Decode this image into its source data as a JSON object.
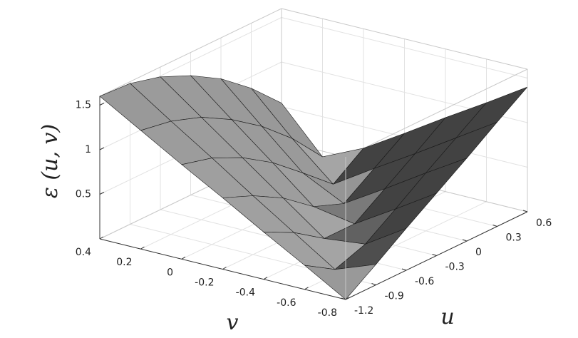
{
  "chart_data": {
    "type": "surface",
    "xlabel": "v",
    "ylabel": "u",
    "zlabel": "ε (u, v)",
    "u": [
      -1.2,
      -0.9,
      -0.6,
      -0.3,
      0,
      0.3,
      0.6
    ],
    "v": [
      -0.8,
      -0.6,
      -0.4,
      -0.2,
      0,
      0.2,
      0.4
    ],
    "z": [
      [
        0,
        0.23,
        0.47,
        0.7,
        0.93,
        1.17,
        1.4
      ],
      [
        0.27,
        0.06,
        0.18,
        0.41,
        0.65,
        0.88,
        1.11
      ],
      [
        0.53,
        0.36,
        0.13,
        0.13,
        0.36,
        0.59,
        0.83
      ],
      [
        0.8,
        0.66,
        0.47,
        0.21,
        0.08,
        0.31,
        0.54
      ],
      [
        1.06,
        0.97,
        0.81,
        0.59,
        0.31,
        0.02,
        0.26
      ],
      [
        1.33,
        1.27,
        1.15,
        0.96,
        0.72,
        0.42,
        0.05
      ],
      [
        1.6,
        1.58,
        1.49,
        1.34,
        1.14,
        0.87,
        0.54
      ]
    ],
    "ulim": [
      -1.2,
      0.6
    ],
    "vlim": [
      -0.8,
      0.4
    ],
    "zlim": [
      0,
      1.6
    ],
    "uticks": [
      -1.2,
      -0.9,
      -0.6,
      -0.3,
      0,
      0.3,
      0.6
    ],
    "vticks": [
      -0.8,
      -0.6,
      -0.4,
      -0.2,
      0,
      0.2,
      0.4
    ],
    "zticks": [
      0.5,
      1,
      1.5
    ],
    "grid": true,
    "face_color": "#8c8c8c",
    "edge_color": "#1a1a1a"
  }
}
